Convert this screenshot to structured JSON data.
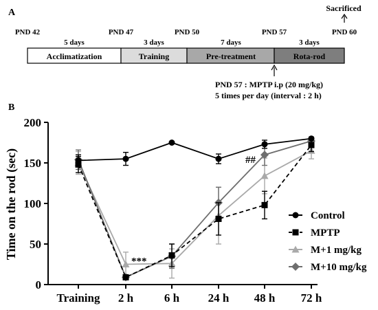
{
  "panel_a": {
    "label": "A",
    "top_note": "Sacrificed",
    "milestones": [
      "PND 42",
      "PND 47",
      "PND 50",
      "PND 57",
      "PND 60"
    ],
    "durations": [
      "5 days",
      "3 days",
      "7 days",
      "3 days"
    ],
    "phases": [
      {
        "label": "Acclimatization",
        "fill": "#ffffff"
      },
      {
        "label": "Training",
        "fill": "#dcdcdc"
      },
      {
        "label": "Pre-treatment",
        "fill": "#a8a8a8"
      },
      {
        "label": "Rota-rod",
        "fill": "#7e7e7e"
      }
    ],
    "injection_line1": "PND 57 : MPTP i.p (20 mg/kg)",
    "injection_line2": "5 times per day (interval : 2 h)"
  },
  "panel_b": {
    "label": "B",
    "annotations": [
      {
        "text": "***",
        "category": "2 h",
        "value": 30
      },
      {
        "text": "##",
        "category": "48 h",
        "value": 155
      }
    ]
  },
  "chart_data": {
    "type": "line",
    "categories": [
      "Training",
      "2 h",
      "6 h",
      "24 h",
      "48 h",
      "72 h"
    ],
    "ylabel": "Time on the rod (sec)",
    "xlabel": "",
    "ylim": [
      0,
      200
    ],
    "yticks": [
      0,
      50,
      100,
      150,
      200
    ],
    "legend_position": "bottom-right",
    "series": [
      {
        "name": "Control",
        "color": "#000000",
        "marker": "circle",
        "dash": "solid",
        "values": [
          153,
          155,
          175,
          155,
          173,
          180
        ],
        "errors": [
          7,
          8,
          0,
          6,
          5,
          0
        ]
      },
      {
        "name": "MPTP",
        "color": "#000000",
        "marker": "square",
        "dash": "dashed",
        "values": [
          148,
          9,
          36,
          81,
          98,
          172
        ],
        "errors": [
          10,
          2,
          14,
          20,
          17,
          8
        ]
      },
      {
        "name": "M+1 mg/kg",
        "color": "#a9a9a9",
        "marker": "triangle",
        "dash": "solid",
        "values": [
          150,
          25,
          26,
          85,
          134,
          165
        ],
        "errors": [
          14,
          15,
          18,
          35,
          22,
          10
        ]
      },
      {
        "name": "M+10 mg/kg",
        "color": "#6e6e6e",
        "marker": "diamond",
        "dash": "solid",
        "values": [
          154,
          9,
          35,
          101,
          160,
          177
        ],
        "errors": [
          12,
          3,
          15,
          19,
          13,
          5
        ]
      }
    ]
  }
}
